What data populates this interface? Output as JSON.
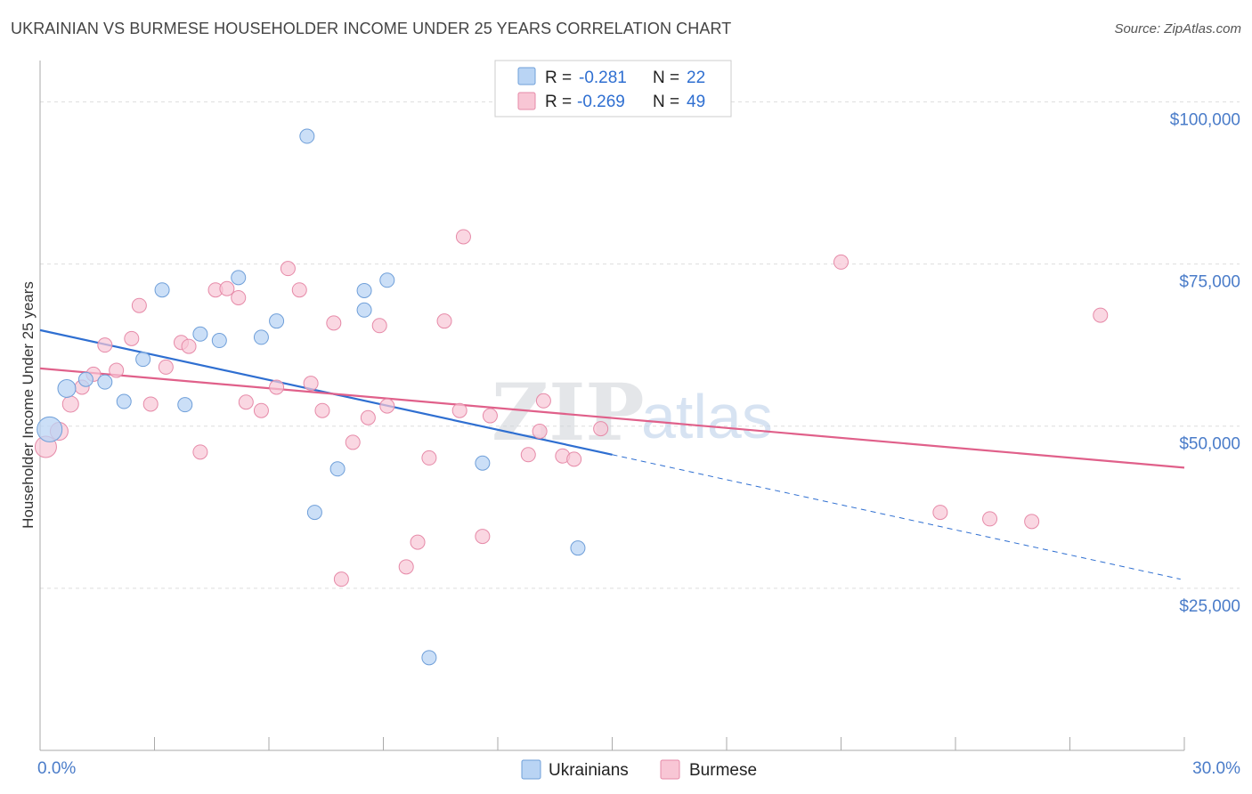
{
  "title": "UKRAINIAN VS BURMESE HOUSEHOLDER INCOME UNDER 25 YEARS CORRELATION CHART",
  "source": "Source: ZipAtlas.com",
  "watermark": {
    "zip": "ZIP",
    "atlas": "atlas"
  },
  "legend": {
    "ukrainians": {
      "r_label": "R =",
      "r_value": "-0.281",
      "n_label": "N =",
      "n_value": "22"
    },
    "burmese": {
      "r_label": "R =",
      "r_value": "-0.269",
      "n_label": "N =",
      "n_value": "49"
    }
  },
  "colors": {
    "ukrainians_fill": "#b9d4f4",
    "ukrainians_stroke": "#6f9fd9",
    "ukrainians_line": "#2f6fd1",
    "burmese_fill": "#f8c6d5",
    "burmese_stroke": "#e68aa8",
    "burmese_line": "#e0608a"
  },
  "chart_data": {
    "type": "scatter",
    "title": "UKRAINIAN VS BURMESE HOUSEHOLDER INCOME UNDER 25 YEARS CORRELATION CHART",
    "xlabel": "",
    "ylabel": "Householder Income Under 25 years",
    "xlim": [
      0,
      30
    ],
    "ylim": [
      0,
      105000
    ],
    "x_tick_labels": [
      "0.0%",
      "30.0%"
    ],
    "y_ticks": [
      25000,
      50000,
      75000,
      100000
    ],
    "y_tick_labels": [
      "$25,000",
      "$50,000",
      "$75,000",
      "$100,000"
    ],
    "legend_position": "top-center",
    "grid": true,
    "series": [
      {
        "name": "Ukrainians",
        "points": [
          {
            "x": 0.25,
            "y": 49500,
            "r": 14
          },
          {
            "x": 0.7,
            "y": 55800,
            "r": 10
          },
          {
            "x": 1.2,
            "y": 57200,
            "r": 8
          },
          {
            "x": 1.7,
            "y": 56800,
            "r": 8
          },
          {
            "x": 2.2,
            "y": 53800,
            "r": 8
          },
          {
            "x": 2.7,
            "y": 60300,
            "r": 8
          },
          {
            "x": 3.2,
            "y": 71000,
            "r": 8
          },
          {
            "x": 3.8,
            "y": 53300,
            "r": 8
          },
          {
            "x": 4.2,
            "y": 64200,
            "r": 8
          },
          {
            "x": 4.7,
            "y": 63200,
            "r": 8
          },
          {
            "x": 5.2,
            "y": 72900,
            "r": 8
          },
          {
            "x": 5.8,
            "y": 63700,
            "r": 8
          },
          {
            "x": 6.2,
            "y": 66200,
            "r": 8
          },
          {
            "x": 7.0,
            "y": 94700,
            "r": 8
          },
          {
            "x": 7.2,
            "y": 36700,
            "r": 8
          },
          {
            "x": 7.8,
            "y": 43400,
            "r": 8
          },
          {
            "x": 8.5,
            "y": 70900,
            "r": 8
          },
          {
            "x": 8.5,
            "y": 67900,
            "r": 8
          },
          {
            "x": 9.1,
            "y": 72500,
            "r": 8
          },
          {
            "x": 10.2,
            "y": 14300,
            "r": 8
          },
          {
            "x": 11.6,
            "y": 44300,
            "r": 8
          },
          {
            "x": 14.1,
            "y": 31200,
            "r": 8
          }
        ],
        "trend": {
          "x0": 0,
          "y0": 64800,
          "x1": 15,
          "y1": 45600,
          "dashed_to_x": 29.9,
          "dashed_to_y": 26400
        }
      },
      {
        "name": "Burmese",
        "points": [
          {
            "x": 0.15,
            "y": 46800,
            "r": 12
          },
          {
            "x": 0.5,
            "y": 49200,
            "r": 10
          },
          {
            "x": 0.8,
            "y": 53400,
            "r": 9
          },
          {
            "x": 1.1,
            "y": 56000,
            "r": 8
          },
          {
            "x": 1.4,
            "y": 58000,
            "r": 8
          },
          {
            "x": 1.7,
            "y": 62500,
            "r": 8
          },
          {
            "x": 2.0,
            "y": 58600,
            "r": 8
          },
          {
            "x": 2.4,
            "y": 63500,
            "r": 8
          },
          {
            "x": 2.6,
            "y": 68600,
            "r": 8
          },
          {
            "x": 2.9,
            "y": 53400,
            "r": 8
          },
          {
            "x": 3.3,
            "y": 59100,
            "r": 8
          },
          {
            "x": 3.7,
            "y": 62900,
            "r": 8
          },
          {
            "x": 3.9,
            "y": 62300,
            "r": 8
          },
          {
            "x": 4.2,
            "y": 46000,
            "r": 8
          },
          {
            "x": 4.6,
            "y": 71000,
            "r": 8
          },
          {
            "x": 4.9,
            "y": 71200,
            "r": 8
          },
          {
            "x": 5.2,
            "y": 69800,
            "r": 8
          },
          {
            "x": 5.4,
            "y": 53700,
            "r": 8
          },
          {
            "x": 5.8,
            "y": 52400,
            "r": 8
          },
          {
            "x": 6.2,
            "y": 56000,
            "r": 8
          },
          {
            "x": 6.5,
            "y": 74300,
            "r": 8
          },
          {
            "x": 6.8,
            "y": 71000,
            "r": 8
          },
          {
            "x": 7.1,
            "y": 56600,
            "r": 8
          },
          {
            "x": 7.4,
            "y": 52400,
            "r": 8
          },
          {
            "x": 7.7,
            "y": 65900,
            "r": 8
          },
          {
            "x": 7.9,
            "y": 26400,
            "r": 8
          },
          {
            "x": 8.2,
            "y": 47500,
            "r": 8
          },
          {
            "x": 8.6,
            "y": 51300,
            "r": 8
          },
          {
            "x": 8.9,
            "y": 65500,
            "r": 8
          },
          {
            "x": 9.1,
            "y": 53100,
            "r": 8
          },
          {
            "x": 9.6,
            "y": 28300,
            "r": 8
          },
          {
            "x": 9.9,
            "y": 32100,
            "r": 8
          },
          {
            "x": 10.2,
            "y": 45100,
            "r": 8
          },
          {
            "x": 10.6,
            "y": 66200,
            "r": 8
          },
          {
            "x": 11.0,
            "y": 52400,
            "r": 8
          },
          {
            "x": 11.1,
            "y": 79200,
            "r": 8
          },
          {
            "x": 11.6,
            "y": 33000,
            "r": 8
          },
          {
            "x": 11.8,
            "y": 51600,
            "r": 8
          },
          {
            "x": 12.8,
            "y": 45600,
            "r": 8
          },
          {
            "x": 13.1,
            "y": 49200,
            "r": 8
          },
          {
            "x": 13.2,
            "y": 53900,
            "r": 8
          },
          {
            "x": 13.7,
            "y": 45400,
            "r": 8
          },
          {
            "x": 14.0,
            "y": 44900,
            "r": 8
          },
          {
            "x": 14.7,
            "y": 49600,
            "r": 8
          },
          {
            "x": 21.0,
            "y": 75300,
            "r": 8
          },
          {
            "x": 23.6,
            "y": 36700,
            "r": 8
          },
          {
            "x": 24.9,
            "y": 35700,
            "r": 8
          },
          {
            "x": 26.0,
            "y": 35300,
            "r": 8
          },
          {
            "x": 27.8,
            "y": 67100,
            "r": 8
          }
        ],
        "trend": {
          "x0": 0,
          "y0": 58900,
          "x1": 30,
          "y1": 43600
        }
      }
    ]
  },
  "bottom_legend": {
    "ukrainians": "Ukrainians",
    "burmese": "Burmese"
  }
}
